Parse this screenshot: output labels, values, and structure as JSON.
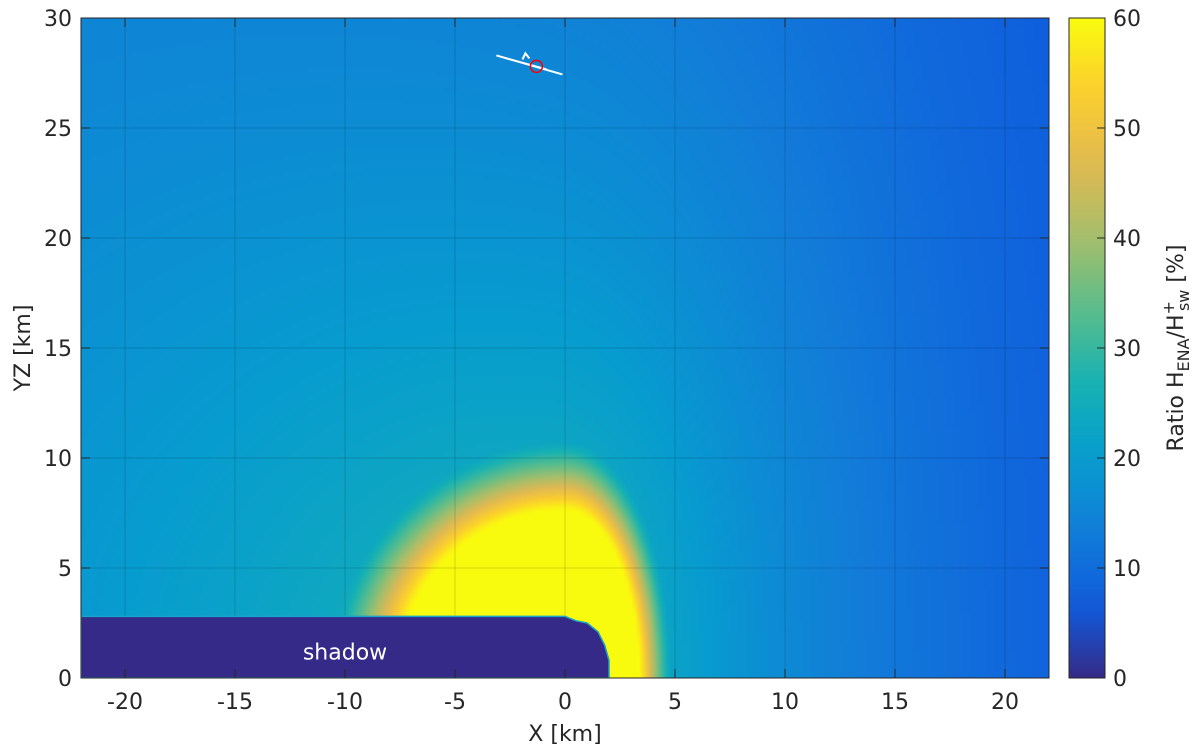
{
  "chart_data": {
    "type": "heatmap",
    "title": "",
    "xlabel": "X [km]",
    "ylabel": "YZ [km]",
    "colorbar_label": {
      "prefix": "Ratio H",
      "sub1": "ENA",
      "mid": "/H",
      "sup": "+",
      "sub2": "sw",
      "suffix": " [%]"
    },
    "xlim": [
      -22,
      22
    ],
    "ylim": [
      0,
      30
    ],
    "clim": [
      0,
      60
    ],
    "xticks": [
      -20,
      -15,
      -10,
      -5,
      0,
      5,
      10,
      15,
      20
    ],
    "yticks": [
      0,
      5,
      10,
      15,
      20,
      25,
      30
    ],
    "cticks": [
      0,
      10,
      20,
      30,
      40,
      50,
      60
    ],
    "grid": true,
    "colormap": "parula",
    "annotation": {
      "text": "shadow",
      "x": -10,
      "y": 1.2
    },
    "shadow_boundary": [
      [
        -22,
        2.8
      ],
      [
        0,
        2.8
      ],
      [
        0.5,
        2.6
      ],
      [
        1.0,
        2.5
      ],
      [
        1.5,
        2.1
      ],
      [
        1.8,
        1.5
      ],
      [
        2.0,
        0.8
      ],
      [
        2.0,
        0
      ]
    ],
    "spacecraft": {
      "x": -1.3,
      "y": 27.8,
      "marker_color": "#ff0000"
    }
  }
}
